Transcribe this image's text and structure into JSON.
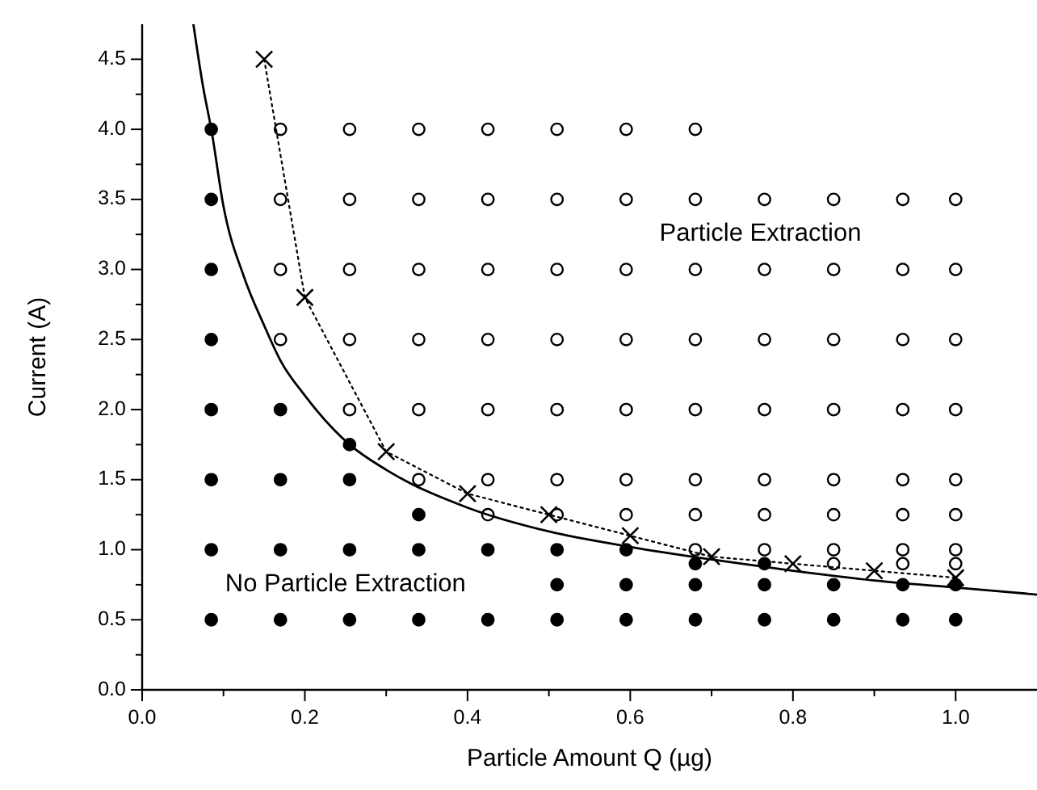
{
  "chart_data": {
    "type": "scatter",
    "xlabel": "Particle Amount Q (µg)",
    "ylabel": "Current (A)",
    "xlim": [
      0,
      1.1
    ],
    "ylim": [
      0,
      4.75
    ],
    "xticks": [
      {
        "value": 0,
        "label": "0.0"
      },
      {
        "value": 0.1,
        "label": null
      },
      {
        "value": 0.2,
        "label": "0.2"
      },
      {
        "value": 0.3,
        "label": null
      },
      {
        "value": 0.4,
        "label": "0.4"
      },
      {
        "value": 0.5,
        "label": null
      },
      {
        "value": 0.6,
        "label": "0.6"
      },
      {
        "value": 0.7,
        "label": null
      },
      {
        "value": 0.8,
        "label": "0.8"
      },
      {
        "value": 0.9,
        "label": null
      },
      {
        "value": 1.0,
        "label": "1.0"
      }
    ],
    "yticks": [
      {
        "value": 0,
        "label": "0.0"
      },
      {
        "value": 0.25,
        "label": null
      },
      {
        "value": 0.5,
        "label": "0.5"
      },
      {
        "value": 0.75,
        "label": null
      },
      {
        "value": 1.0,
        "label": "1.0"
      },
      {
        "value": 1.25,
        "label": null
      },
      {
        "value": 1.5,
        "label": "1.5"
      },
      {
        "value": 1.75,
        "label": null
      },
      {
        "value": 2.0,
        "label": "2.0"
      },
      {
        "value": 2.25,
        "label": null
      },
      {
        "value": 2.5,
        "label": "2.5"
      },
      {
        "value": 2.75,
        "label": null
      },
      {
        "value": 3.0,
        "label": "3.0"
      },
      {
        "value": 3.25,
        "label": null
      },
      {
        "value": 3.5,
        "label": "3.5"
      },
      {
        "value": 3.75,
        "label": null
      },
      {
        "value": 4.0,
        "label": "4.0"
      },
      {
        "value": 4.25,
        "label": null
      },
      {
        "value": 4.5,
        "label": "4.5"
      }
    ],
    "grid": false,
    "annotations": [
      "Particle Extraction",
      "No Particle Extraction"
    ],
    "series": [
      {
        "marker": "circle",
        "color": "#000000",
        "x": [
          0.085,
          0.085,
          0.085,
          0.085,
          0.085,
          0.085,
          0.085,
          0.085,
          0.17,
          0.17,
          0.17,
          0.17,
          0.255,
          0.255,
          0.255,
          0.255,
          0.34,
          0.34,
          0.34,
          0.425,
          0.425,
          0.51,
          0.51,
          0.51,
          0.595,
          0.595,
          0.595,
          0.68,
          0.68,
          0.68,
          0.765,
          0.765,
          0.765,
          0.85,
          0.85,
          0.935,
          0.935,
          1.0,
          1.0
        ],
        "values": [
          0.5,
          1.0,
          1.5,
          2.0,
          2.5,
          3.0,
          3.5,
          4.0,
          0.5,
          1.0,
          1.5,
          2.0,
          0.5,
          1.0,
          1.5,
          1.75,
          0.5,
          1.0,
          1.25,
          0.5,
          1.0,
          0.5,
          0.75,
          1.0,
          0.5,
          0.75,
          1.0,
          0.5,
          0.75,
          0.9,
          0.5,
          0.75,
          0.9,
          0.5,
          0.75,
          0.5,
          0.75,
          0.5,
          0.75
        ]
      },
      {
        "marker": "circle",
        "color": "#ffffff",
        "x": [
          0.17,
          0.17,
          0.17,
          0.17,
          0.255,
          0.255,
          0.255,
          0.255,
          0.255,
          0.34,
          0.34,
          0.34,
          0.34,
          0.34,
          0.34,
          0.425,
          0.425,
          0.425,
          0.425,
          0.425,
          0.425,
          0.425,
          0.51,
          0.51,
          0.51,
          0.51,
          0.51,
          0.51,
          0.51,
          0.595,
          0.595,
          0.595,
          0.595,
          0.595,
          0.595,
          0.595,
          0.68,
          0.68,
          0.68,
          0.68,
          0.68,
          0.68,
          0.68,
          0.68,
          0.765,
          0.765,
          0.765,
          0.765,
          0.765,
          0.765,
          0.765,
          0.85,
          0.85,
          0.85,
          0.85,
          0.85,
          0.85,
          0.85,
          0.85,
          0.935,
          0.935,
          0.935,
          0.935,
          0.935,
          0.935,
          0.935,
          0.935,
          1.0,
          1.0,
          1.0,
          1.0,
          1.0,
          1.0,
          1.0,
          1.0
        ],
        "values": [
          2.5,
          3.0,
          3.5,
          4.0,
          2.0,
          2.5,
          3.0,
          3.5,
          4.0,
          1.5,
          2.0,
          2.5,
          3.0,
          3.5,
          4.0,
          1.25,
          1.5,
          2.0,
          2.5,
          3.0,
          3.5,
          4.0,
          1.25,
          1.5,
          2.0,
          2.5,
          3.0,
          3.5,
          4.0,
          1.25,
          1.5,
          2.0,
          2.5,
          3.0,
          3.5,
          4.0,
          1.0,
          1.25,
          1.5,
          2.0,
          2.5,
          3.0,
          3.5,
          4.0,
          1.0,
          1.25,
          1.5,
          2.0,
          2.5,
          3.0,
          3.5,
          0.9,
          1.0,
          1.25,
          1.5,
          2.0,
          2.5,
          3.0,
          3.5,
          0.9,
          1.0,
          1.25,
          1.5,
          2.0,
          2.5,
          3.0,
          3.5,
          0.9,
          1.0,
          1.25,
          1.5,
          2.0,
          2.5,
          3.0,
          3.5
        ]
      },
      {
        "type": "line",
        "marker": "none",
        "line_style": "solid",
        "color": "#000000",
        "x": [
          0.063,
          0.075,
          0.085,
          0.1,
          0.125,
          0.15,
          0.17,
          0.2,
          0.255,
          0.3,
          0.4,
          0.5,
          0.6,
          0.7,
          0.8,
          0.9,
          1.0,
          1.1
        ],
        "values": [
          4.75,
          4.3,
          4.0,
          3.45,
          2.95,
          2.6,
          2.35,
          2.1,
          1.75,
          1.57,
          1.3,
          1.13,
          1.02,
          0.93,
          0.85,
          0.78,
          0.73,
          0.68
        ]
      },
      {
        "type": "line",
        "marker": "cross",
        "line_style": "dotted",
        "color": "#000000",
        "x": [
          0.15,
          0.2,
          0.3,
          0.4,
          0.5,
          0.6,
          0.7,
          0.8,
          0.9,
          1.0
        ],
        "values": [
          4.5,
          2.8,
          1.7,
          1.4,
          1.25,
          1.1,
          0.95,
          0.9,
          0.85,
          0.8
        ]
      }
    ]
  }
}
